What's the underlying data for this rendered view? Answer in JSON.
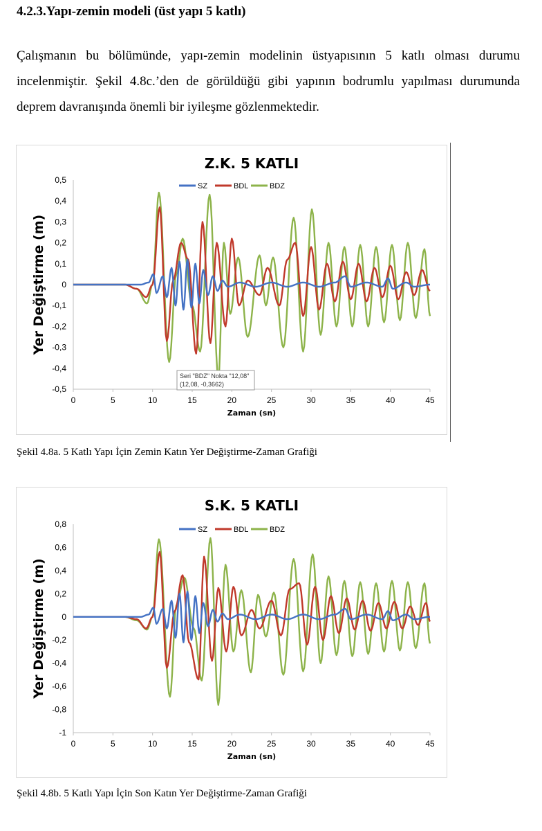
{
  "heading": "4.2.3.Yapı-zemin modeli (üst yapı 5 katlı)",
  "paragraph": "Çalışmanın bu bölümünde, yapı-zemin modelinin üstyapısının 5 katlı olması durumu incelenmiştir. Şekil 4.8c.’den de görüldüğü gibi yapının bodrumlu yapılması durumunda deprem davranışında önemli bir iyileşme gözlenmektedir.",
  "captions": {
    "fig_a": "Şekil 4.8a. 5 Katlı Yapı İçin Zemin Katın Yer Değiştirme-Zaman Grafiği",
    "fig_b": "Şekil 4.8b. 5 Katlı Yapı İçin Son Katın Yer Değiştirme-Zaman Grafiği"
  },
  "colors": {
    "SZ": "#4472C4",
    "BDL": "#C0392B",
    "BDZ": "#8DB34A"
  },
  "chart_data": [
    {
      "type": "line",
      "title": "Z.K. 5 KATLI",
      "xlabel": "Zaman (sn)",
      "ylabel": "Yer Değiştirme (m)",
      "xlim": [
        0,
        45
      ],
      "ylim": [
        -0.5,
        0.5
      ],
      "xticks": [
        0,
        5,
        10,
        15,
        20,
        25,
        30,
        35,
        40,
        45
      ],
      "yticks": [
        "0,5",
        "0,4",
        "0,3",
        "0,2",
        "0,1",
        "0",
        "-0,1",
        "-0,2",
        "-0,3",
        "-0,4",
        "-0,5"
      ],
      "legend_position": "top",
      "grid": false,
      "tooltip": {
        "line1": "Seri \"BDZ\" Nokta \"12,08\"",
        "line2": "(12,08, -0,3662)"
      },
      "series": [
        {
          "name": "SZ",
          "x": [
            0,
            6.5,
            8.5,
            9.5,
            10.1,
            10.5,
            11.3,
            11.8,
            12.4,
            12.9,
            13.4,
            13.9,
            14.4,
            14.9,
            15.4,
            15.9,
            16.4,
            17.0,
            17.6,
            18.2,
            18.8,
            19.5,
            21,
            23,
            25,
            27,
            29,
            31,
            33,
            34.3,
            35,
            37,
            39,
            39.7,
            40.3,
            42,
            43,
            45
          ],
          "y": [
            0,
            0,
            0,
            0.01,
            0.05,
            -0.04,
            0.04,
            -0.06,
            0.08,
            -0.1,
            0.11,
            -0.12,
            0.12,
            -0.11,
            0.1,
            -0.09,
            0.07,
            -0.05,
            0.04,
            -0.03,
            0.02,
            -0.01,
            0.01,
            -0.01,
            0.01,
            -0.01,
            0.01,
            -0.01,
            0.01,
            0.04,
            -0.01,
            0.01,
            -0.01,
            0.03,
            -0.02,
            0.01,
            -0.01,
            0.0
          ]
        },
        {
          "name": "BDL",
          "x": [
            0,
            6.5,
            8.0,
            9.2,
            10.0,
            10.9,
            11.8,
            12.6,
            13.6,
            14.5,
            15.5,
            16.3,
            17.3,
            18.1,
            19.2,
            20.0,
            20.9,
            22.0,
            23.5,
            24.5,
            26.0,
            27.0,
            28.0,
            29.0,
            30.0,
            31.0,
            32.0,
            33.0,
            34.0,
            35.0,
            36.0,
            37.0,
            38.0,
            39.0,
            40.0,
            41.0,
            42.0,
            43.0,
            44.0,
            45.0
          ],
          "y": [
            0,
            0,
            -0.02,
            -0.06,
            0.0,
            0.37,
            -0.27,
            0.02,
            0.2,
            0.12,
            -0.33,
            0.3,
            -0.28,
            0.2,
            -0.2,
            0.22,
            -0.1,
            0.02,
            -0.05,
            0.08,
            -0.1,
            0.12,
            0.2,
            -0.15,
            0.18,
            -0.12,
            0.1,
            -0.08,
            0.11,
            -0.07,
            0.1,
            -0.08,
            0.08,
            -0.06,
            0.09,
            -0.07,
            0.06,
            -0.05,
            0.07,
            -0.03
          ]
        },
        {
          "name": "BDZ",
          "x": [
            0,
            6.5,
            8.0,
            9.3,
            10.0,
            10.8,
            12.1,
            13.0,
            13.8,
            15.0,
            16.0,
            17.2,
            18.3,
            19.0,
            19.8,
            20.8,
            22.0,
            23.5,
            24.3,
            25.2,
            26.5,
            27.8,
            29.0,
            30.1,
            31.2,
            32.2,
            33.2,
            34.2,
            35.2,
            36.2,
            37.2,
            38.2,
            39.2,
            40.2,
            41.2,
            42.2,
            43.2,
            44.3,
            45.0
          ],
          "y": [
            0,
            0,
            -0.02,
            -0.09,
            0.0,
            0.44,
            -0.37,
            0.05,
            0.22,
            -0.1,
            -0.32,
            0.43,
            -0.45,
            0.2,
            -0.14,
            0.13,
            -0.25,
            0.14,
            -0.1,
            0.13,
            -0.3,
            0.32,
            -0.32,
            0.36,
            -0.24,
            0.2,
            -0.2,
            0.18,
            -0.2,
            0.19,
            -0.2,
            0.18,
            -0.18,
            0.19,
            -0.17,
            0.2,
            -0.16,
            0.17,
            -0.15
          ]
        }
      ]
    },
    {
      "type": "line",
      "title": "S.K. 5 KATLI",
      "xlabel": "Zaman (sn)",
      "ylabel": "Yer Değiştirme (m)",
      "xlim": [
        0,
        45
      ],
      "ylim": [
        -1,
        0.8
      ],
      "xticks": [
        0,
        5,
        10,
        15,
        20,
        25,
        30,
        35,
        40,
        45
      ],
      "yticks": [
        "0,8",
        "0,6",
        "0,4",
        "0,2",
        "0",
        "-0,2",
        "-0,4",
        "-0,6",
        "-0,8",
        "-1"
      ],
      "legend_position": "top",
      "grid": false,
      "series": [
        {
          "name": "SZ",
          "x": [
            0,
            6.5,
            8.5,
            9.5,
            10.1,
            10.5,
            11.3,
            11.8,
            12.4,
            12.9,
            13.4,
            13.9,
            14.4,
            14.9,
            15.4,
            15.9,
            16.4,
            17.0,
            17.6,
            18.2,
            18.8,
            19.5,
            21,
            23,
            25,
            27,
            29,
            31,
            33,
            34.3,
            35,
            37,
            39,
            39.7,
            40.3,
            42,
            43,
            45
          ],
          "y": [
            0,
            0,
            0,
            0.02,
            0.08,
            -0.06,
            0.07,
            -0.1,
            0.14,
            -0.18,
            0.2,
            -0.22,
            0.22,
            -0.2,
            0.18,
            -0.14,
            0.12,
            -0.08,
            0.06,
            -0.04,
            0.03,
            -0.02,
            0.02,
            -0.02,
            0.02,
            -0.02,
            0.02,
            -0.02,
            0.02,
            0.07,
            -0.02,
            0.02,
            -0.02,
            0.05,
            -0.03,
            0.02,
            -0.02,
            0.0
          ]
        },
        {
          "name": "BDL",
          "x": [
            0,
            6.5,
            8.0,
            9.2,
            10.0,
            10.9,
            11.8,
            12.8,
            13.8,
            14.6,
            15.8,
            16.5,
            17.5,
            18.3,
            19.3,
            20.2,
            21.2,
            22.5,
            23.5,
            25.0,
            26.2,
            27.3,
            28.5,
            29.5,
            30.5,
            31.5,
            32.5,
            33.5,
            34.5,
            35.5,
            36.5,
            37.5,
            38.5,
            39.5,
            40.5,
            41.5,
            42.5,
            43.5,
            44.5,
            45.0
          ],
          "y": [
            0,
            0,
            -0.02,
            -0.1,
            0.0,
            0.56,
            -0.44,
            0.05,
            0.36,
            -0.22,
            -0.54,
            0.52,
            -0.38,
            0.25,
            -0.3,
            0.26,
            -0.16,
            0.06,
            -0.1,
            0.14,
            -0.16,
            0.24,
            0.29,
            -0.24,
            0.26,
            -0.2,
            0.18,
            -0.14,
            0.16,
            -0.11,
            0.14,
            -0.12,
            0.12,
            -0.1,
            0.13,
            -0.1,
            0.09,
            -0.07,
            0.12,
            -0.04
          ]
        },
        {
          "name": "BDZ",
          "x": [
            0,
            6.5,
            8.0,
            9.3,
            10.0,
            10.8,
            12.2,
            13.0,
            14.0,
            15.2,
            16.2,
            17.3,
            18.3,
            19.2,
            20.2,
            21.2,
            22.4,
            23.3,
            24.3,
            25.3,
            26.5,
            27.8,
            29.0,
            30.2,
            31.2,
            32.2,
            33.2,
            34.2,
            35.2,
            36.2,
            37.2,
            38.2,
            39.2,
            40.2,
            41.2,
            42.2,
            43.2,
            44.3,
            45.0
          ],
          "y": [
            0,
            0,
            -0.03,
            -0.11,
            0.0,
            0.67,
            -0.69,
            0.1,
            0.34,
            -0.1,
            -0.55,
            0.68,
            -0.76,
            0.45,
            -0.3,
            0.23,
            -0.48,
            0.19,
            -0.17,
            0.21,
            -0.5,
            0.5,
            -0.47,
            0.54,
            -0.4,
            0.35,
            -0.33,
            0.31,
            -0.34,
            0.3,
            -0.32,
            0.29,
            -0.3,
            0.31,
            -0.29,
            0.3,
            -0.27,
            0.29,
            -0.23
          ]
        }
      ]
    }
  ]
}
